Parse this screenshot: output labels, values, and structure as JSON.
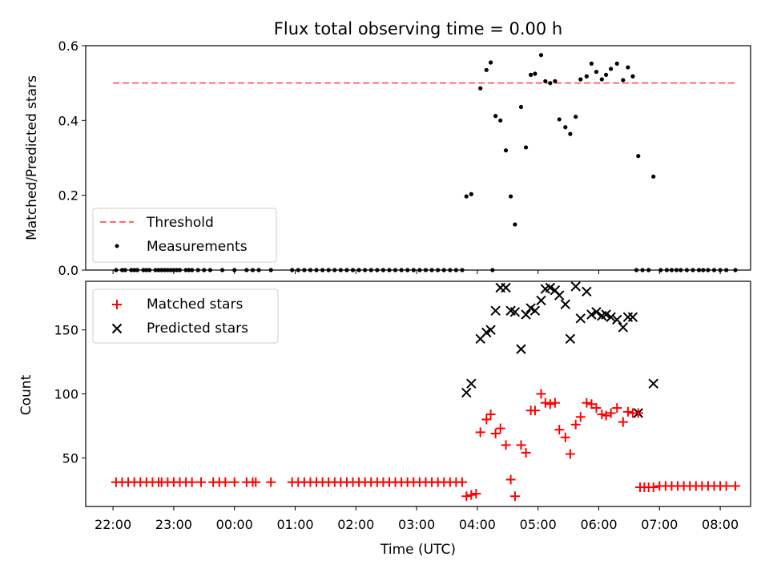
{
  "chart_data": [
    {
      "type": "scatter",
      "title": "Flux total observing time = 0.00 h",
      "ylabel": "Matched/Predicted stars",
      "xlabel": "",
      "xlim": [
        -0.45,
        10.5
      ],
      "ylim": [
        0,
        0.6
      ],
      "yticks": [
        0.0,
        0.2,
        0.4,
        0.6
      ],
      "ytick_labels": [
        "0.0",
        "0.2",
        "0.4",
        "0.6"
      ],
      "threshold": {
        "name": "Threshold",
        "value": 0.5,
        "x_start": 0.0,
        "x_end": 10.25,
        "color": "#ff6b6b"
      },
      "legend": {
        "location": "lower-left",
        "entries": [
          "Threshold",
          "Measurements"
        ]
      },
      "series": [
        {
          "name": "Measurements",
          "marker": "dot",
          "color": "#000000",
          "points": [
            [
              0.05,
              0
            ],
            [
              0.15,
              0
            ],
            [
              0.2,
              0
            ],
            [
              0.3,
              0
            ],
            [
              0.35,
              0
            ],
            [
              0.4,
              0
            ],
            [
              0.5,
              0
            ],
            [
              0.55,
              0
            ],
            [
              0.6,
              0
            ],
            [
              0.7,
              0
            ],
            [
              0.75,
              0
            ],
            [
              0.8,
              0
            ],
            [
              0.85,
              0
            ],
            [
              0.9,
              0
            ],
            [
              0.95,
              0
            ],
            [
              1.0,
              0
            ],
            [
              1.05,
              0
            ],
            [
              1.1,
              0
            ],
            [
              1.2,
              0
            ],
            [
              1.25,
              0
            ],
            [
              1.3,
              0
            ],
            [
              1.4,
              0
            ],
            [
              1.5,
              0
            ],
            [
              1.6,
              0
            ],
            [
              1.8,
              0
            ],
            [
              2.0,
              0
            ],
            [
              2.2,
              0
            ],
            [
              2.3,
              0
            ],
            [
              2.4,
              0
            ],
            [
              2.6,
              0
            ],
            [
              2.95,
              0
            ],
            [
              3.05,
              0
            ],
            [
              3.15,
              0
            ],
            [
              3.25,
              0
            ],
            [
              3.35,
              0
            ],
            [
              3.45,
              0
            ],
            [
              3.55,
              0
            ],
            [
              3.65,
              0
            ],
            [
              3.75,
              0
            ],
            [
              3.85,
              0
            ],
            [
              3.95,
              0
            ],
            [
              4.05,
              0
            ],
            [
              4.15,
              0
            ],
            [
              4.25,
              0
            ],
            [
              4.35,
              0
            ],
            [
              4.45,
              0
            ],
            [
              4.55,
              0
            ],
            [
              4.65,
              0
            ],
            [
              4.75,
              0
            ],
            [
              4.85,
              0
            ],
            [
              4.95,
              0
            ],
            [
              5.05,
              0
            ],
            [
              5.15,
              0
            ],
            [
              5.25,
              0
            ],
            [
              5.35,
              0
            ],
            [
              5.45,
              0
            ],
            [
              5.55,
              0
            ],
            [
              5.65,
              0
            ],
            [
              5.75,
              0
            ],
            [
              6.25,
              0
            ],
            [
              9.8,
              0
            ],
            [
              9.9,
              0
            ],
            [
              10.0,
              0
            ],
            [
              10.1,
              0
            ],
            [
              10.25,
              0
            ],
            [
              9.2,
              0
            ],
            [
              9.28,
              0
            ],
            [
              9.45,
              0
            ],
            [
              9.55,
              0
            ],
            [
              9.65,
              0
            ],
            [
              8.62,
              0
            ],
            [
              8.72,
              0
            ],
            [
              8.82,
              0
            ],
            [
              9.02,
              0
            ],
            [
              9.12,
              0
            ],
            [
              9.35,
              0
            ],
            [
              9.72,
              0
            ],
            [
              5.82,
              0.197
            ],
            [
              5.9,
              0.203
            ],
            [
              6.05,
              0.486
            ],
            [
              6.15,
              0.535
            ],
            [
              6.22,
              0.555
            ],
            [
              6.3,
              0.412
            ],
            [
              6.38,
              0.4
            ],
            [
              6.47,
              0.32
            ],
            [
              6.55,
              0.197
            ],
            [
              6.62,
              0.122
            ],
            [
              6.72,
              0.436
            ],
            [
              6.8,
              0.328
            ],
            [
              6.88,
              0.522
            ],
            [
              6.95,
              0.525
            ],
            [
              7.05,
              0.575
            ],
            [
              7.12,
              0.505
            ],
            [
              7.2,
              0.5
            ],
            [
              7.28,
              0.505
            ],
            [
              7.35,
              0.403
            ],
            [
              7.45,
              0.382
            ],
            [
              7.53,
              0.364
            ],
            [
              7.62,
              0.41
            ],
            [
              7.7,
              0.51
            ],
            [
              7.8,
              0.518
            ],
            [
              7.88,
              0.552
            ],
            [
              7.96,
              0.53
            ],
            [
              8.05,
              0.51
            ],
            [
              8.12,
              0.522
            ],
            [
              8.2,
              0.538
            ],
            [
              8.3,
              0.552
            ],
            [
              8.4,
              0.508
            ],
            [
              8.48,
              0.542
            ],
            [
              8.56,
              0.518
            ],
            [
              8.65,
              0.305
            ],
            [
              8.9,
              0.25
            ]
          ]
        }
      ]
    },
    {
      "type": "scatter",
      "title": "",
      "ylabel": "Count",
      "xlabel": "Time (UTC)",
      "xlim": [
        -0.45,
        10.5
      ],
      "ylim": [
        12,
        188
      ],
      "xticks": [
        0,
        1,
        2,
        3,
        4,
        5,
        6,
        7,
        8,
        9,
        10
      ],
      "xtick_labels": [
        "22:00",
        "23:00",
        "00:00",
        "01:00",
        "02:00",
        "03:00",
        "04:00",
        "05:00",
        "06:00",
        "07:00",
        "08:00"
      ],
      "yticks": [
        50,
        100,
        150
      ],
      "ytick_labels": [
        "50",
        "100",
        "150"
      ],
      "legend": {
        "location": "upper-left",
        "entries": [
          "Matched stars",
          "Predicted stars"
        ]
      },
      "series": [
        {
          "name": "Matched stars",
          "marker": "plus",
          "color": "#ff0000",
          "points": [
            [
              0.05,
              31
            ],
            [
              0.15,
              31
            ],
            [
              0.25,
              31
            ],
            [
              0.35,
              31
            ],
            [
              0.45,
              31
            ],
            [
              0.55,
              31
            ],
            [
              0.65,
              31
            ],
            [
              0.75,
              31
            ],
            [
              0.8,
              31
            ],
            [
              0.9,
              31
            ],
            [
              1.0,
              31
            ],
            [
              1.1,
              31
            ],
            [
              1.2,
              31
            ],
            [
              1.3,
              31
            ],
            [
              1.45,
              31
            ],
            [
              1.65,
              31
            ],
            [
              1.75,
              31
            ],
            [
              1.85,
              31
            ],
            [
              2.0,
              31
            ],
            [
              2.2,
              31
            ],
            [
              2.3,
              31
            ],
            [
              2.35,
              31
            ],
            [
              2.6,
              31
            ],
            [
              2.95,
              31
            ],
            [
              3.05,
              31
            ],
            [
              3.15,
              31
            ],
            [
              3.25,
              31
            ],
            [
              3.35,
              31
            ],
            [
              3.45,
              31
            ],
            [
              3.55,
              31
            ],
            [
              3.65,
              31
            ],
            [
              3.75,
              31
            ],
            [
              3.85,
              31
            ],
            [
              3.95,
              31
            ],
            [
              4.05,
              31
            ],
            [
              4.15,
              31
            ],
            [
              4.25,
              31
            ],
            [
              4.35,
              31
            ],
            [
              4.45,
              31
            ],
            [
              4.55,
              31
            ],
            [
              4.65,
              31
            ],
            [
              4.75,
              31
            ],
            [
              4.85,
              31
            ],
            [
              4.95,
              31
            ],
            [
              5.05,
              31
            ],
            [
              5.15,
              31
            ],
            [
              5.25,
              31
            ],
            [
              5.35,
              31
            ],
            [
              5.45,
              31
            ],
            [
              5.55,
              31
            ],
            [
              5.65,
              31
            ],
            [
              5.75,
              31
            ],
            [
              5.82,
              20
            ],
            [
              5.9,
              21
            ],
            [
              5.98,
              22
            ],
            [
              6.05,
              70
            ],
            [
              6.15,
              80
            ],
            [
              6.22,
              84
            ],
            [
              6.3,
              69
            ],
            [
              6.38,
              73
            ],
            [
              6.47,
              60
            ],
            [
              6.55,
              33
            ],
            [
              6.62,
              20
            ],
            [
              6.72,
              60
            ],
            [
              6.8,
              54
            ],
            [
              6.88,
              87
            ],
            [
              6.95,
              87
            ],
            [
              7.05,
              100
            ],
            [
              7.12,
              93
            ],
            [
              7.2,
              92
            ],
            [
              7.28,
              93
            ],
            [
              7.35,
              72
            ],
            [
              7.45,
              66
            ],
            [
              7.53,
              53
            ],
            [
              7.62,
              76
            ],
            [
              7.7,
              82
            ],
            [
              7.8,
              93
            ],
            [
              7.88,
              92
            ],
            [
              7.96,
              89
            ],
            [
              8.05,
              84
            ],
            [
              8.12,
              83
            ],
            [
              8.2,
              85
            ],
            [
              8.3,
              89
            ],
            [
              8.4,
              78
            ],
            [
              8.48,
              86
            ],
            [
              8.56,
              85
            ],
            [
              8.65,
              85
            ],
            [
              8.68,
              27
            ],
            [
              8.75,
              27
            ],
            [
              8.82,
              27
            ],
            [
              8.9,
              27
            ],
            [
              9.0,
              28
            ],
            [
              9.1,
              28
            ],
            [
              9.2,
              28
            ],
            [
              9.3,
              28
            ],
            [
              9.4,
              28
            ],
            [
              9.5,
              28
            ],
            [
              9.6,
              28
            ],
            [
              9.7,
              28
            ],
            [
              9.8,
              28
            ],
            [
              9.9,
              28
            ],
            [
              10.0,
              28
            ],
            [
              10.1,
              28
            ],
            [
              10.25,
              28
            ]
          ]
        },
        {
          "name": "Predicted stars",
          "marker": "x",
          "color": "#000000",
          "points": [
            [
              5.82,
              101
            ],
            [
              5.9,
              108
            ],
            [
              6.05,
              143
            ],
            [
              6.15,
              148
            ],
            [
              6.22,
              150
            ],
            [
              6.3,
              165
            ],
            [
              6.38,
              183
            ],
            [
              6.47,
              183
            ],
            [
              6.55,
              165
            ],
            [
              6.62,
              164
            ],
            [
              6.72,
              135
            ],
            [
              6.8,
              162
            ],
            [
              6.88,
              167
            ],
            [
              6.95,
              165
            ],
            [
              7.05,
              173
            ],
            [
              7.12,
              182
            ],
            [
              7.2,
              183
            ],
            [
              7.28,
              181
            ],
            [
              7.35,
              177
            ],
            [
              7.45,
              170
            ],
            [
              7.53,
              143
            ],
            [
              7.62,
              184
            ],
            [
              7.7,
              159
            ],
            [
              7.8,
              180
            ],
            [
              7.88,
              162
            ],
            [
              7.96,
              164
            ],
            [
              8.05,
              161
            ],
            [
              8.12,
              162
            ],
            [
              8.2,
              160
            ],
            [
              8.3,
              158
            ],
            [
              8.4,
              152
            ],
            [
              8.48,
              160
            ],
            [
              8.56,
              160
            ],
            [
              8.65,
              85
            ],
            [
              8.9,
              108
            ]
          ]
        }
      ]
    }
  ]
}
